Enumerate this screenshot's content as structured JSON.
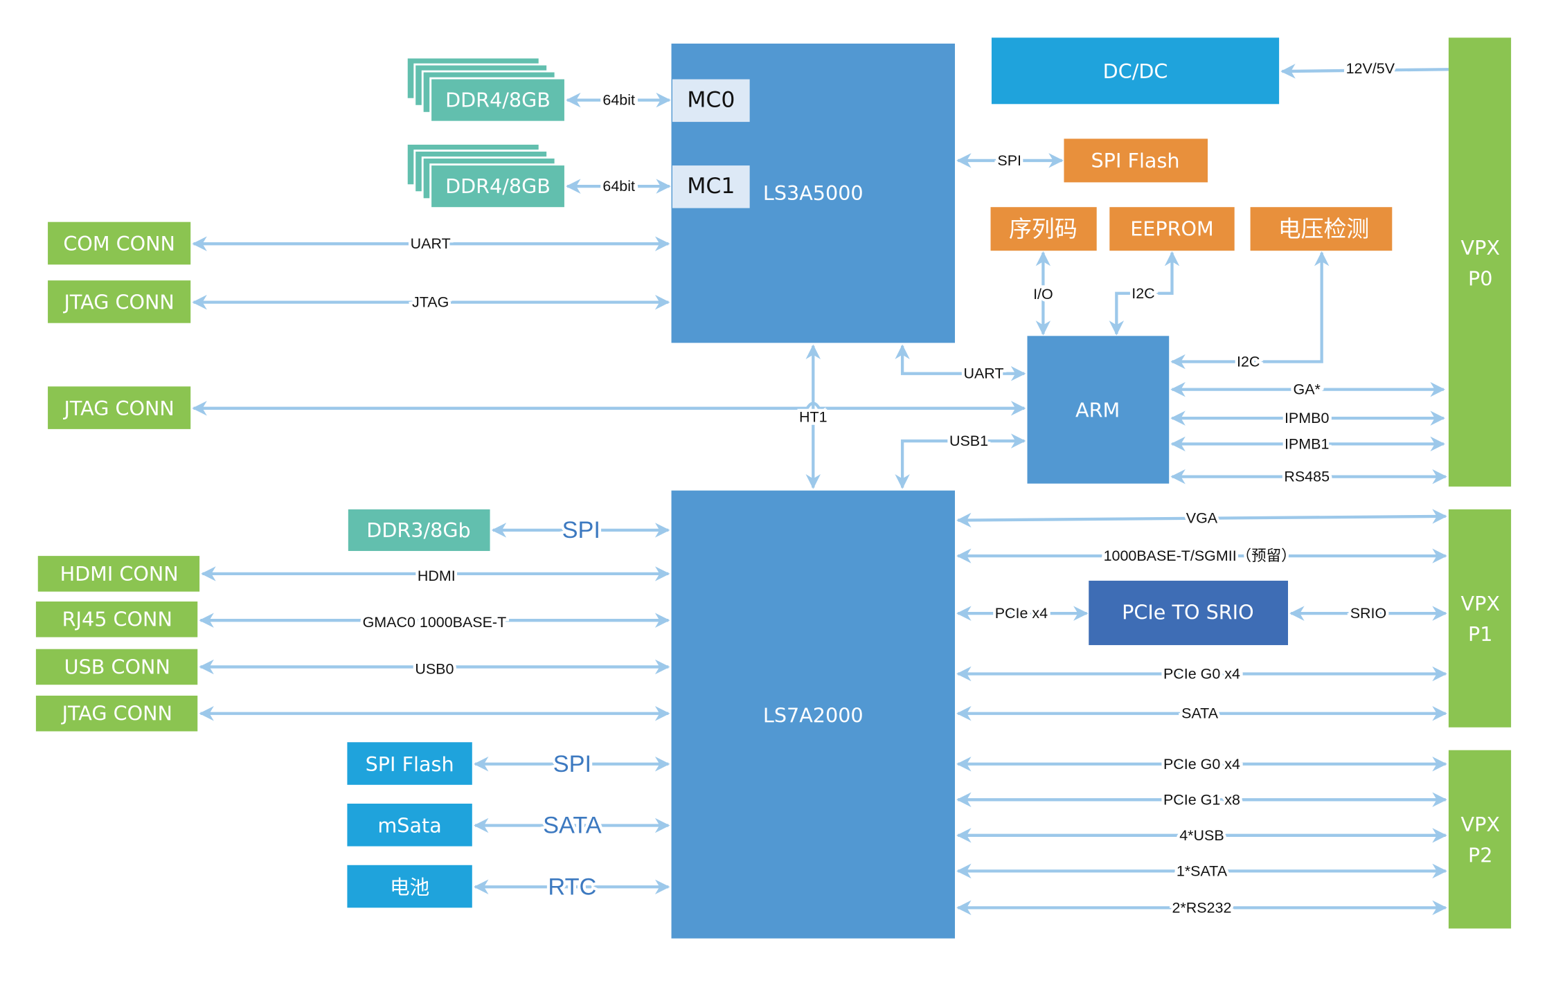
{
  "colors": {
    "cpu": "#5298d2",
    "green": "#8bc451",
    "teal": "#62bfae",
    "orange": "#e8903c",
    "cyan": "#1fa3dc",
    "srio": "#3e6db5",
    "mc": "#dde9f6",
    "line": "#9cc8ea"
  },
  "blocks": {
    "ls3a5000": "LS3A5000",
    "mc0": "MC0",
    "mc1": "MC1",
    "ddr4_0": "DDR4/8GB",
    "ddr4_1": "DDR4/8GB",
    "dcdc": "DC/DC",
    "spi_flash_top": "SPI Flash",
    "serial": "序列码",
    "eeprom": "EEPROM",
    "voltage": "电压检测",
    "arm": "ARM",
    "vpx_p0": [
      "VPX",
      "P0"
    ],
    "vpx_p1": [
      "VPX",
      "P1"
    ],
    "vpx_p2": [
      "VPX",
      "P2"
    ],
    "ls7a2000": "LS7A2000",
    "com_conn": "COM CONN",
    "jtag_conn_1": "JTAG CONN",
    "jtag_conn_2": "JTAG CONN",
    "ddr3": "DDR3/8Gb",
    "hdmi_conn": "HDMI CONN",
    "rj45_conn": "RJ45 CONN",
    "usb_conn": "USB CONN",
    "jtag_conn_3": "JTAG CONN",
    "spi_flash_bottom": "SPI Flash",
    "msata": "mSata",
    "battery": "电池",
    "pcie_srio": "PCIe TO SRIO"
  },
  "links": {
    "ddr0": "64bit",
    "ddr1": "64bit",
    "uart": "UART",
    "jtag": "JTAG",
    "ht1": "HT1",
    "power": "12V/5V",
    "spi_top": "SPI",
    "io": "I/O",
    "i2c_eeprom": "I2C",
    "i2c_volt": "I2C",
    "arm_uart": "UART",
    "usb1": "USB1",
    "ga": "GA*",
    "ipmb0": "IPMB0",
    "ipmb1": "IPMB1",
    "rs485": "RS485",
    "ddr3_spi": "SPI",
    "hdmi": "HDMI",
    "gmac": "GMAC0   1000BASE-T",
    "usb0": "USB0",
    "spi_bottom": "SPI",
    "sata": "SATA",
    "rtc": "RTC",
    "vga": "VGA",
    "sgmii": "1000BASE-T/SGMII（预留）",
    "pcie_x4": "PCIe x4",
    "srio": "SRIO",
    "pcie_g0_p1": "PCIe G0 x4",
    "sata_p1": "SATA",
    "pcie_g0_p2": "PCIe G0 x4",
    "pcie_g1": "PCIe G1 x8",
    "usb4": "4*USB",
    "sata1": "1*SATA",
    "rs232": "2*RS232"
  }
}
